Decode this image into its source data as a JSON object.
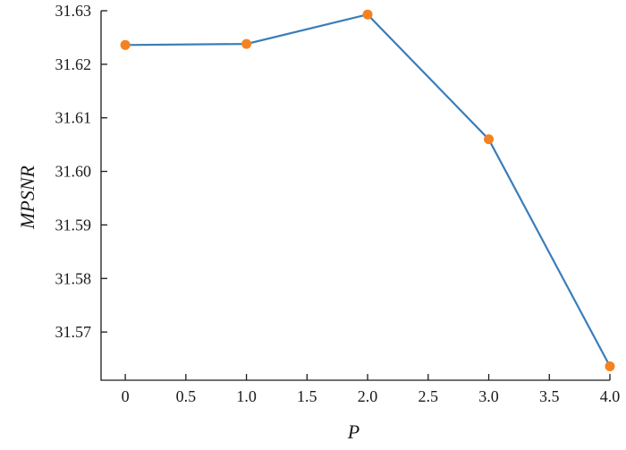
{
  "chart_data": {
    "type": "line",
    "title": "",
    "xlabel": "P",
    "ylabel": "MPSNR",
    "xlim": [
      -0.2,
      4.0
    ],
    "ylim": [
      31.561,
      31.63
    ],
    "xticks": [
      0,
      0.5,
      1.0,
      1.5,
      2.0,
      2.5,
      3.0,
      3.5,
      4.0
    ],
    "xtick_labels": [
      "0",
      "0.5",
      "1.0",
      "1.5",
      "2.0",
      "2.5",
      "3.0",
      "3.5",
      "4.0"
    ],
    "yticks": [
      31.57,
      31.58,
      31.59,
      31.6,
      31.61,
      31.62,
      31.63
    ],
    "ytick_labels": [
      "31.57",
      "31.58",
      "31.59",
      "31.60",
      "31.61",
      "31.62",
      "31.63"
    ],
    "grid": false,
    "x": [
      0,
      1.0,
      2.0,
      3.0,
      4.0
    ],
    "y": [
      31.6236,
      31.6238,
      31.6293,
      31.606,
      31.5636
    ],
    "colors": {
      "line": "#3a7db8",
      "marker": "#f58220",
      "axis": "#1a1a1a"
    }
  }
}
